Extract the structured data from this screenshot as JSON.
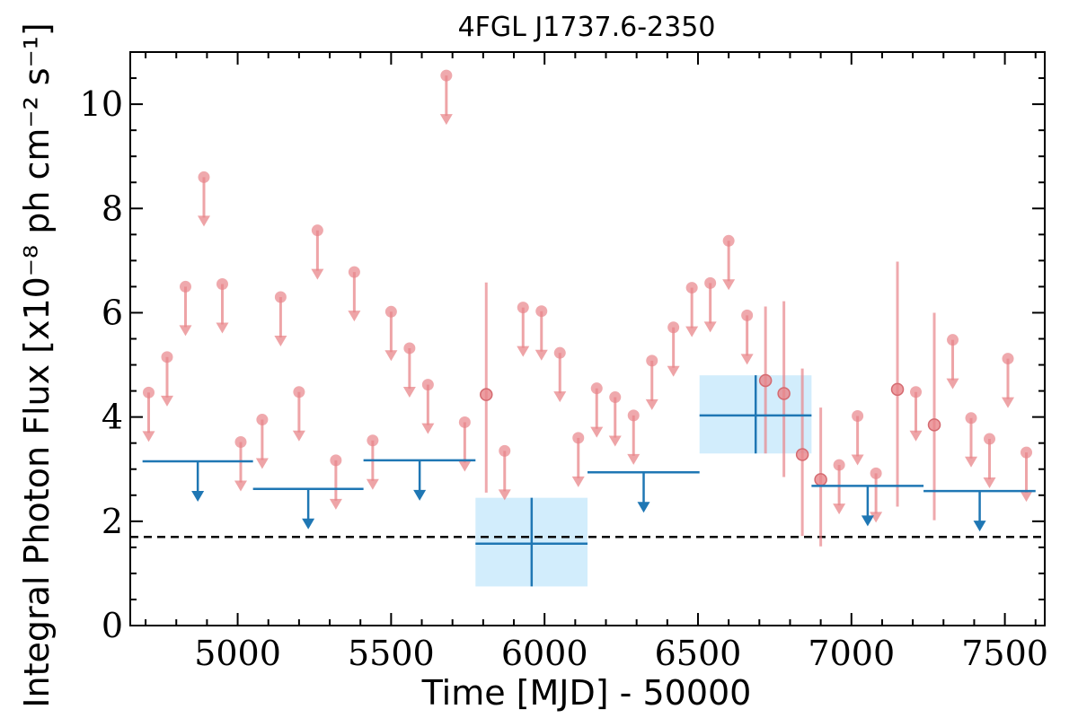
{
  "chart_data": {
    "type": "scatter",
    "title": "4FGL J1737.6-2350",
    "xlabel": "Time [MJD] - 50000",
    "ylabel": "Integral Photon Flux [x10⁻⁸ ph cm⁻² s⁻¹]",
    "xlim": [
      4650,
      7630
    ],
    "ylim": [
      0,
      11
    ],
    "x_ticks": [
      5000,
      5500,
      6000,
      6500,
      7000,
      7500
    ],
    "x_tick_labels": [
      "5000",
      "5500",
      "6000",
      "6500",
      "7000",
      "7500"
    ],
    "y_ticks": [
      0,
      2,
      4,
      6,
      8,
      10
    ],
    "y_tick_labels": [
      "0",
      "2",
      "4",
      "6",
      "8",
      "10"
    ],
    "grid": false,
    "reference_line": {
      "y": 1.7,
      "style": "dashed",
      "color": "#000000"
    },
    "colors": {
      "fine": "#e8858a",
      "coarse": "#1f77b4",
      "coarse_box": "#bfe6fb",
      "axes": "#000000"
    },
    "series": [
      {
        "style": "fine-bins",
        "upper_limits": [
          {
            "x": 4710,
            "y": 4.47
          },
          {
            "x": 4770,
            "y": 5.15
          },
          {
            "x": 4830,
            "y": 6.5
          },
          {
            "x": 4890,
            "y": 8.6
          },
          {
            "x": 4950,
            "y": 6.55
          },
          {
            "x": 5010,
            "y": 3.52
          },
          {
            "x": 5080,
            "y": 3.95
          },
          {
            "x": 5140,
            "y": 6.3
          },
          {
            "x": 5200,
            "y": 4.48
          },
          {
            "x": 5260,
            "y": 7.58
          },
          {
            "x": 5320,
            "y": 3.17
          },
          {
            "x": 5380,
            "y": 6.78
          },
          {
            "x": 5440,
            "y": 3.55
          },
          {
            "x": 5500,
            "y": 6.02
          },
          {
            "x": 5560,
            "y": 5.32
          },
          {
            "x": 5620,
            "y": 4.62
          },
          {
            "x": 5680,
            "y": 10.55
          },
          {
            "x": 5740,
            "y": 3.9
          },
          {
            "x": 5870,
            "y": 3.35
          },
          {
            "x": 5930,
            "y": 6.1
          },
          {
            "x": 5990,
            "y": 6.03
          },
          {
            "x": 6050,
            "y": 5.23
          },
          {
            "x": 6110,
            "y": 3.6
          },
          {
            "x": 6170,
            "y": 4.55
          },
          {
            "x": 6230,
            "y": 4.38
          },
          {
            "x": 6290,
            "y": 4.03
          },
          {
            "x": 6350,
            "y": 5.08
          },
          {
            "x": 6420,
            "y": 5.72
          },
          {
            "x": 6480,
            "y": 6.48
          },
          {
            "x": 6540,
            "y": 6.57
          },
          {
            "x": 6600,
            "y": 7.38
          },
          {
            "x": 6660,
            "y": 5.95
          },
          {
            "x": 6960,
            "y": 3.08
          },
          {
            "x": 7020,
            "y": 4.02
          },
          {
            "x": 7080,
            "y": 2.92
          },
          {
            "x": 7210,
            "y": 4.48
          },
          {
            "x": 7330,
            "y": 5.48
          },
          {
            "x": 7390,
            "y": 3.98
          },
          {
            "x": 7450,
            "y": 3.58
          },
          {
            "x": 7510,
            "y": 5.12
          },
          {
            "x": 7570,
            "y": 3.32
          }
        ],
        "detections": [
          {
            "x": 5810,
            "y": 4.43,
            "y_low": 2.55,
            "y_high": 6.58
          },
          {
            "x": 6720,
            "y": 4.7,
            "y_low": 3.3,
            "y_high": 6.12
          },
          {
            "x": 6780,
            "y": 4.45,
            "y_low": 2.85,
            "y_high": 6.22
          },
          {
            "x": 6840,
            "y": 3.28,
            "y_low": 1.72,
            "y_high": 4.93
          },
          {
            "x": 6900,
            "y": 2.8,
            "y_low": 1.52,
            "y_high": 4.18
          },
          {
            "x": 7150,
            "y": 4.53,
            "y_low": 2.28,
            "y_high": 6.98
          },
          {
            "x": 7270,
            "y": 3.85,
            "y_low": 2.02,
            "y_high": 6.0
          }
        ]
      },
      {
        "style": "coarse-bins",
        "upper_limits": [
          {
            "x0": 4690,
            "x1": 5050,
            "x": 4870,
            "y": 3.15
          },
          {
            "x0": 5050,
            "x1": 5410,
            "x": 5230,
            "y": 2.62
          },
          {
            "x0": 5410,
            "x1": 5775,
            "x": 5593,
            "y": 3.17
          },
          {
            "x0": 6140,
            "x1": 6505,
            "x": 6323,
            "y": 2.94
          },
          {
            "x0": 6870,
            "x1": 7235,
            "x": 7053,
            "y": 2.68
          },
          {
            "x0": 7235,
            "x1": 7600,
            "x": 7418,
            "y": 2.58
          }
        ],
        "detections": [
          {
            "x0": 5775,
            "x1": 6140,
            "x": 5958,
            "y": 1.57,
            "y_low": 0.75,
            "y_high": 2.45
          },
          {
            "x0": 6505,
            "x1": 6870,
            "x": 6688,
            "y": 4.03,
            "y_low": 3.3,
            "y_high": 4.8
          }
        ]
      }
    ]
  }
}
